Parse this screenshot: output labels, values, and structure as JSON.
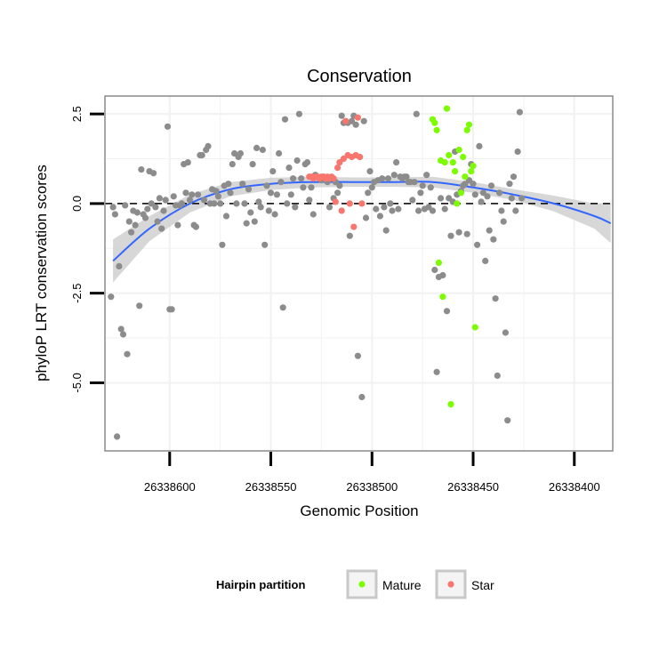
{
  "chart_data": {
    "type": "scatter",
    "title": "Conservation",
    "xlabel": "Genomic Position",
    "ylabel": "phyloP LRT conservation scores",
    "xlim": [
      26338632,
      26338381
    ],
    "ylim": [
      -6.9,
      3.0
    ],
    "x_reversed": true,
    "grid": true,
    "x_ticks": [
      {
        "value": 26338600,
        "label": "26338600"
      },
      {
        "value": 26338550,
        "label": "26338550"
      },
      {
        "value": 26338500,
        "label": "26338500"
      },
      {
        "value": 26338450,
        "label": "26338450"
      },
      {
        "value": 26338400,
        "label": "26338400"
      }
    ],
    "y_ticks": [
      {
        "value": 2.5,
        "label": "2.5"
      },
      {
        "value": 0.0,
        "label": "0.0"
      },
      {
        "value": -2.5,
        "label": "-2.5"
      },
      {
        "value": -5.0,
        "label": "-5.0"
      }
    ],
    "reference_line": {
      "y": 0,
      "style": "dashed"
    },
    "colors": {
      "other": "#8c8c8c",
      "mature": "#7cfc00",
      "star": "#f8766d",
      "smooth": "#3366ff",
      "ribbon": "#d0d0d0",
      "panel_border": "#8a8a8a",
      "grid": "#f2f2f2"
    },
    "legend": {
      "title": "Hairpin partition",
      "position": "bottom",
      "entries": [
        {
          "label": "Mature",
          "color": "#7cfc00"
        },
        {
          "label": "Star",
          "color": "#f8766d"
        }
      ]
    },
    "series": [
      {
        "name": "Other",
        "color": "#8c8c8c",
        "points": [
          [
            26338629,
            -2.6
          ],
          [
            26338628,
            -0.1
          ],
          [
            26338627,
            -0.3
          ],
          [
            26338626,
            -6.5
          ],
          [
            26338625,
            -1.75
          ],
          [
            26338624,
            -3.5
          ],
          [
            26338623,
            -3.65
          ],
          [
            26338622,
            -0.05
          ],
          [
            26338621,
            -4.2
          ],
          [
            26338620,
            -0.5
          ],
          [
            26338619,
            -0.8
          ],
          [
            26338618,
            -0.2
          ],
          [
            26338617,
            -0.6
          ],
          [
            26338616,
            -0.25
          ],
          [
            26338615,
            -2.85
          ],
          [
            26338614,
            0.95
          ],
          [
            26338613,
            -0.3
          ],
          [
            26338612,
            -0.4
          ],
          [
            26338611,
            -0.15
          ],
          [
            26338610,
            0.9
          ],
          [
            26338609,
            0.0
          ],
          [
            26338608,
            0.85
          ],
          [
            26338607,
            -0.1
          ],
          [
            26338606,
            -0.5
          ],
          [
            26338605,
            0.15
          ],
          [
            26338604,
            -0.7
          ],
          [
            26338603,
            -0.2
          ],
          [
            26338602,
            0.1
          ],
          [
            26338601,
            2.15
          ],
          [
            26338600,
            -2.95
          ],
          [
            26338599,
            -2.95
          ],
          [
            26338598,
            0.2
          ],
          [
            26338597,
            -0.05
          ],
          [
            26338596,
            -0.6
          ],
          [
            26338595,
            -0.05
          ],
          [
            26338594,
            0.0
          ],
          [
            26338593,
            1.1
          ],
          [
            26338592,
            0.3
          ],
          [
            26338591,
            1.15
          ],
          [
            26338590,
            0.1
          ],
          [
            26338589,
            0.25
          ],
          [
            26338588,
            -0.6
          ],
          [
            26338587,
            -0.65
          ],
          [
            26338586,
            0.25
          ],
          [
            26338585,
            1.35
          ],
          [
            26338584,
            1.35
          ],
          [
            26338583,
            0.1
          ],
          [
            26338582,
            1.5
          ],
          [
            26338581,
            1.6
          ],
          [
            26338580,
            0.0
          ],
          [
            26338579,
            0.4
          ],
          [
            26338578,
            0.0
          ],
          [
            26338577,
            0.35
          ],
          [
            26338576,
            0.2
          ],
          [
            26338575,
            0.0
          ],
          [
            26338574,
            -1.15
          ],
          [
            26338573,
            0.5
          ],
          [
            26338572,
            -0.35
          ],
          [
            26338571,
            0.55
          ],
          [
            26338570,
            0.3
          ],
          [
            26338569,
            1.1
          ],
          [
            26338568,
            1.4
          ],
          [
            26338567,
            0.0
          ],
          [
            26338566,
            1.3
          ],
          [
            26338565,
            1.4
          ],
          [
            26338564,
            0.55
          ],
          [
            26338563,
            0.0
          ],
          [
            26338562,
            -0.55
          ],
          [
            26338561,
            0.4
          ],
          [
            26338560,
            -0.25
          ],
          [
            26338559,
            1.1
          ],
          [
            26338558,
            -0.5
          ],
          [
            26338557,
            1.55
          ],
          [
            26338556,
            0.05
          ],
          [
            26338555,
            -0.1
          ],
          [
            26338554,
            1.5
          ],
          [
            26338553,
            -1.15
          ],
          [
            26338552,
            0.5
          ],
          [
            26338551,
            -0.2
          ],
          [
            26338550,
            0.3
          ],
          [
            26338549,
            0.9
          ],
          [
            26338548,
            -0.3
          ],
          [
            26338547,
            0.25
          ],
          [
            26338546,
            1.4
          ],
          [
            26338545,
            0.6
          ],
          [
            26338544,
            -2.9
          ],
          [
            26338543,
            2.35
          ],
          [
            26338542,
            0.0
          ],
          [
            26338541,
            1.0
          ],
          [
            26338540,
            0.25
          ],
          [
            26338539,
            0.7
          ],
          [
            26338538,
            -0.1
          ],
          [
            26338537,
            1.2
          ],
          [
            26338536,
            2.5
          ],
          [
            26338535,
            0.7
          ],
          [
            26338534,
            0.45
          ],
          [
            26338533,
            1.1
          ],
          [
            26338532,
            1.15
          ],
          [
            26338531,
            0.1
          ],
          [
            26338530,
            0.45
          ],
          [
            26338529,
            -0.3
          ],
          [
            26338528,
            0.8
          ],
          [
            26338527,
            0.75
          ],
          [
            26338526,
            0.7
          ],
          [
            26338525,
            0.65
          ],
          [
            26338524,
            0.75
          ],
          [
            26338523,
            0.7
          ],
          [
            26338522,
            0.6
          ],
          [
            26338521,
            -0.1
          ],
          [
            26338520,
            0.7
          ],
          [
            26338519,
            0.15
          ],
          [
            26338518,
            0.6
          ],
          [
            26338517,
            0.3
          ],
          [
            26338516,
            0.5
          ],
          [
            26338515,
            2.45
          ],
          [
            26338514,
            2.25
          ],
          [
            26338513,
            2.3
          ],
          [
            26338512,
            2.25
          ],
          [
            26338511,
            -0.9
          ],
          [
            26338510,
            2.3
          ],
          [
            26338509,
            2.45
          ],
          [
            26338508,
            2.2
          ],
          [
            26338507,
            -4.25
          ],
          [
            26338506,
            1.3
          ],
          [
            26338505,
            -5.4
          ],
          [
            26338504,
            2.3
          ],
          [
            26338503,
            -0.4
          ],
          [
            26338502,
            0.3
          ],
          [
            26338501,
            0.9
          ],
          [
            26338500,
            0.45
          ],
          [
            26338499,
            0.6
          ],
          [
            26338498,
            -0.15
          ],
          [
            26338497,
            0.65
          ],
          [
            26338496,
            -0.35
          ],
          [
            26338495,
            0.7
          ],
          [
            26338494,
            -0.1
          ],
          [
            26338493,
            -0.75
          ],
          [
            26338492,
            0.7
          ],
          [
            26338491,
            0.0
          ],
          [
            26338490,
            -0.2
          ],
          [
            26338489,
            0.8
          ],
          [
            26338488,
            1.15
          ],
          [
            26338487,
            -0.15
          ],
          [
            26338486,
            0.75
          ],
          [
            26338485,
            0.7
          ],
          [
            26338484,
            0.75
          ],
          [
            26338483,
            0.75
          ],
          [
            26338482,
            0.6
          ],
          [
            26338481,
            0.6
          ],
          [
            26338480,
            0.1
          ],
          [
            26338479,
            0.6
          ],
          [
            26338478,
            2.5
          ],
          [
            26338477,
            -0.2
          ],
          [
            26338476,
            0.3
          ],
          [
            26338475,
            0.5
          ],
          [
            26338474,
            -0.15
          ],
          [
            26338473,
            0.8
          ],
          [
            26338472,
            -0.1
          ],
          [
            26338471,
            0.45
          ],
          [
            26338470,
            -0.2
          ],
          [
            26338469,
            -1.85
          ],
          [
            26338468,
            -4.7
          ],
          [
            26338467,
            -2.05
          ],
          [
            26338466,
            0.15
          ],
          [
            26338465,
            -2.0
          ],
          [
            26338464,
            -0.15
          ],
          [
            26338463,
            -3.0
          ],
          [
            26338462,
            0.15
          ],
          [
            26338461,
            -0.9
          ],
          [
            26338460,
            0.05
          ],
          [
            26338459,
            1.45
          ],
          [
            26338458,
            0.25
          ],
          [
            26338457,
            -0.8
          ],
          [
            26338456,
            0.35
          ],
          [
            26338455,
            0.5
          ],
          [
            26338454,
            0.55
          ],
          [
            26338453,
            -0.85
          ],
          [
            26338452,
            0.65
          ],
          [
            26338451,
            1.1
          ],
          [
            26338450,
            0.55
          ],
          [
            26338449,
            0.25
          ],
          [
            26338448,
            -1.15
          ],
          [
            26338447,
            1.6
          ],
          [
            26338446,
            0.05
          ],
          [
            26338445,
            0.3
          ],
          [
            26338444,
            -1.6
          ],
          [
            26338443,
            0.2
          ],
          [
            26338442,
            -0.75
          ],
          [
            26338441,
            0.5
          ],
          [
            26338440,
            -1.0
          ],
          [
            26338439,
            -2.65
          ],
          [
            26338438,
            -4.8
          ],
          [
            26338437,
            0.3
          ],
          [
            26338436,
            -0.2
          ],
          [
            26338435,
            -0.5
          ],
          [
            26338434,
            -3.6
          ],
          [
            26338433,
            -6.05
          ],
          [
            26338432,
            0.55
          ],
          [
            26338431,
            0.15
          ],
          [
            26338430,
            0.75
          ],
          [
            26338429,
            -0.2
          ],
          [
            26338428,
            1.45
          ],
          [
            26338427,
            2.55
          ],
          [
            26338426,
            0.15
          ]
        ]
      },
      {
        "name": "Star",
        "color": "#f8766d",
        "points": [
          [
            26338531,
            0.75
          ],
          [
            26338530,
            0.75
          ],
          [
            26338529,
            0.7
          ],
          [
            26338528,
            0.75
          ],
          [
            26338527,
            0.75
          ],
          [
            26338526,
            0.7
          ],
          [
            26338525,
            0.75
          ],
          [
            26338524,
            0.75
          ],
          [
            26338523,
            0.7
          ],
          [
            26338522,
            0.75
          ],
          [
            26338521,
            0.7
          ],
          [
            26338520,
            0.75
          ],
          [
            26338519,
            0.7
          ],
          [
            26338518,
            0.05
          ],
          [
            26338517,
            1.0
          ],
          [
            26338516,
            1.15
          ],
          [
            26338515,
            -0.2
          ],
          [
            26338514,
            1.25
          ],
          [
            26338513,
            2.3
          ],
          [
            26338512,
            1.35
          ],
          [
            26338511,
            0.0
          ],
          [
            26338510,
            1.3
          ],
          [
            26338509,
            -0.65
          ],
          [
            26338508,
            1.35
          ],
          [
            26338507,
            2.4
          ],
          [
            26338506,
            1.3
          ],
          [
            26338505,
            0.0
          ]
        ]
      },
      {
        "name": "Mature",
        "color": "#7cfc00",
        "points": [
          [
            26338470,
            2.35
          ],
          [
            26338469,
            2.25
          ],
          [
            26338468,
            2.05
          ],
          [
            26338467,
            -1.65
          ],
          [
            26338466,
            1.2
          ],
          [
            26338465,
            -2.6
          ],
          [
            26338464,
            1.15
          ],
          [
            26338463,
            2.65
          ],
          [
            26338462,
            1.35
          ],
          [
            26338461,
            -5.6
          ],
          [
            26338460,
            1.15
          ],
          [
            26338459,
            0.9
          ],
          [
            26338458,
            0.0
          ],
          [
            26338457,
            1.5
          ],
          [
            26338456,
            0.3
          ],
          [
            26338455,
            1.3
          ],
          [
            26338454,
            0.75
          ],
          [
            26338453,
            2.05
          ],
          [
            26338452,
            2.2
          ],
          [
            26338451,
            0.9
          ],
          [
            26338450,
            1.05
          ],
          [
            26338449,
            -3.45
          ]
        ]
      }
    ],
    "smooth": {
      "method": "loess",
      "x": [
        26338628,
        26338610,
        26338590,
        26338570,
        26338550,
        26338530,
        26338510,
        26338490,
        26338470,
        26338450,
        26338430,
        26338410,
        26338390,
        26338382
      ],
      "y": [
        -1.6,
        -0.7,
        0.0,
        0.4,
        0.55,
        0.6,
        0.6,
        0.6,
        0.6,
        0.45,
        0.25,
        0.0,
        -0.35,
        -0.55
      ],
      "lower": [
        -2.2,
        -1.05,
        -0.25,
        0.2,
        0.38,
        0.45,
        0.47,
        0.47,
        0.45,
        0.3,
        0.1,
        -0.22,
        -0.7,
        -1.1
      ],
      "upper": [
        -1.0,
        -0.35,
        0.25,
        0.6,
        0.72,
        0.75,
        0.73,
        0.73,
        0.75,
        0.6,
        0.4,
        0.22,
        0.0,
        0.0
      ]
    }
  }
}
